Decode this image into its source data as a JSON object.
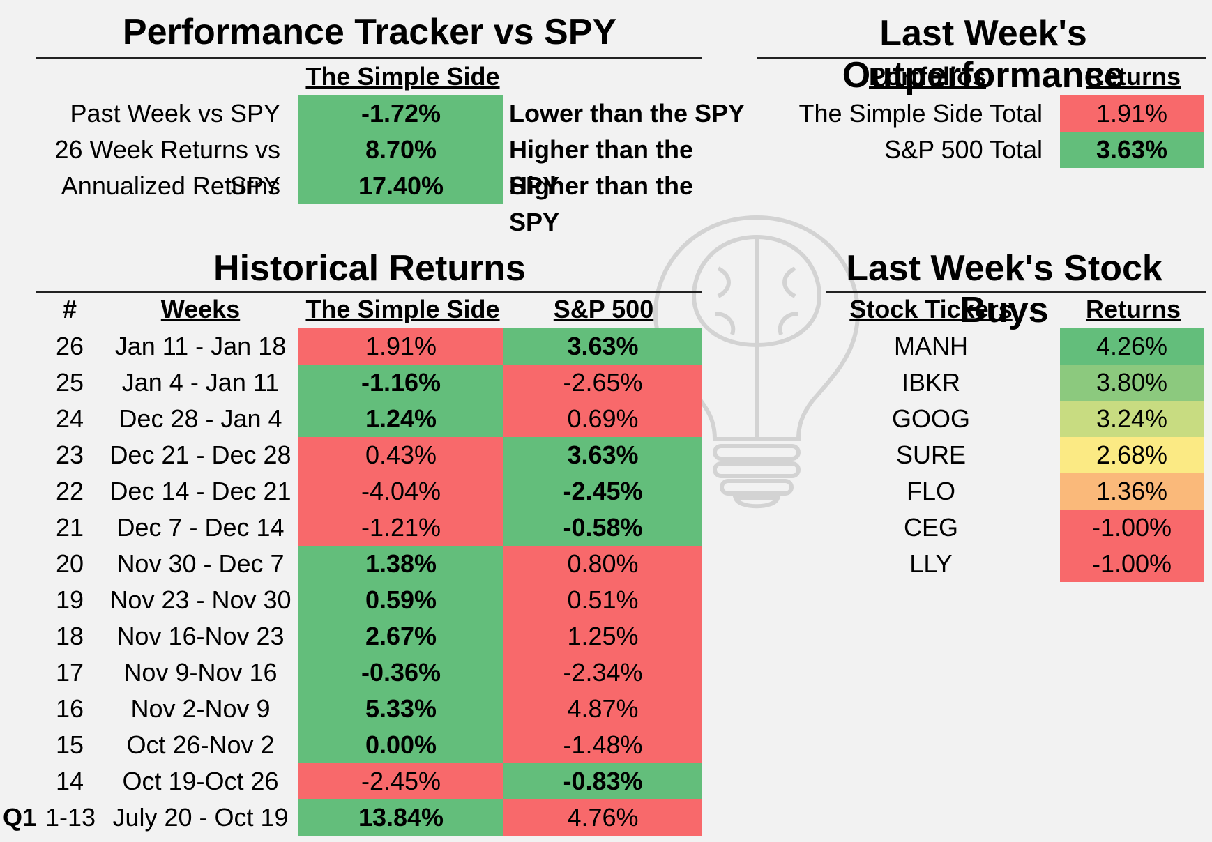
{
  "tracker": {
    "title": "Performance Tracker vs SPY",
    "column_header": "The Simple Side",
    "rows": [
      {
        "label": "Past Week vs SPY",
        "value": "-1.72%",
        "comment": "Lower than the SPY"
      },
      {
        "label": "26 Week Returns vs SPY",
        "value": "8.70%",
        "comment": "Higher than the SPY"
      },
      {
        "label": "Annualized Returns",
        "value": "17.40%",
        "comment": "Higher than the SPY"
      }
    ]
  },
  "outperformance": {
    "title": "Last Week's Outperformance",
    "headers": [
      "Portfolios",
      "Returns"
    ],
    "rows": [
      {
        "name": "The Simple Side Total",
        "value": "1.91%"
      },
      {
        "name": "S&P 500 Total",
        "value": "3.63%"
      }
    ]
  },
  "historical": {
    "title": "Historical Returns",
    "headers": [
      "#",
      "Weeks",
      "The Simple Side",
      "S&P 500"
    ],
    "rows": [
      {
        "num": "26",
        "weeks": "Jan 11 - Jan 18",
        "ss": "1.91%",
        "sp": "3.63%",
        "winner": "sp"
      },
      {
        "num": "25",
        "weeks": "Jan 4 - Jan 11",
        "ss": "-1.16%",
        "sp": "-2.65%",
        "winner": "ss"
      },
      {
        "num": "24",
        "weeks": "Dec 28 - Jan 4",
        "ss": "1.24%",
        "sp": "0.69%",
        "winner": "ss"
      },
      {
        "num": "23",
        "weeks": "Dec 21 - Dec 28",
        "ss": "0.43%",
        "sp": "3.63%",
        "winner": "sp"
      },
      {
        "num": "22",
        "weeks": "Dec 14 - Dec 21",
        "ss": "-4.04%",
        "sp": "-2.45%",
        "winner": "sp"
      },
      {
        "num": "21",
        "weeks": "Dec 7 - Dec 14",
        "ss": "-1.21%",
        "sp": "-0.58%",
        "winner": "sp"
      },
      {
        "num": "20",
        "weeks": "Nov 30 - Dec 7",
        "ss": "1.38%",
        "sp": "0.80%",
        "winner": "ss"
      },
      {
        "num": "19",
        "weeks": "Nov 23 - Nov 30",
        "ss": "0.59%",
        "sp": "0.51%",
        "winner": "ss"
      },
      {
        "num": "18",
        "weeks": "Nov 16-Nov 23",
        "ss": "2.67%",
        "sp": "1.25%",
        "winner": "ss"
      },
      {
        "num": "17",
        "weeks": "Nov 9-Nov 16",
        "ss": "-0.36%",
        "sp": "-2.34%",
        "winner": "ss"
      },
      {
        "num": "16",
        "weeks": "Nov 2-Nov 9",
        "ss": "5.33%",
        "sp": "4.87%",
        "winner": "ss"
      },
      {
        "num": "15",
        "weeks": "Oct 26-Nov 2",
        "ss": "0.00%",
        "sp": "-1.48%",
        "winner": "ss"
      },
      {
        "num": "14",
        "weeks": "Oct 19-Oct 26",
        "ss": "-2.45%",
        "sp": "-0.83%",
        "winner": "sp"
      },
      {
        "num": "1-13",
        "weeks": "July 20 - Oct 19",
        "ss": "13.84%",
        "sp": "4.76%",
        "winner": "ss",
        "prefix": "Q1"
      }
    ]
  },
  "stock_buys": {
    "title": "Last Week's Stock Buys",
    "headers": [
      "Stock Tickers",
      "Returns"
    ],
    "rows": [
      {
        "ticker": "MANH",
        "value": "4.26%",
        "color": "#63be7b"
      },
      {
        "ticker": "IBKR",
        "value": "3.80%",
        "color": "#8cc97e"
      },
      {
        "ticker": "GOOG",
        "value": "3.24%",
        "color": "#c8dc81"
      },
      {
        "ticker": "SURE",
        "value": "2.68%",
        "color": "#fbea84"
      },
      {
        "ticker": "FLO",
        "value": "1.36%",
        "color": "#fab97a"
      },
      {
        "ticker": "CEG",
        "value": "-1.00%",
        "color": "#f8696b"
      },
      {
        "ticker": "LLY",
        "value": "-1.00%",
        "color": "#f8696b"
      }
    ]
  },
  "colors": {
    "green": "#63be7b",
    "red": "#f8696b"
  }
}
